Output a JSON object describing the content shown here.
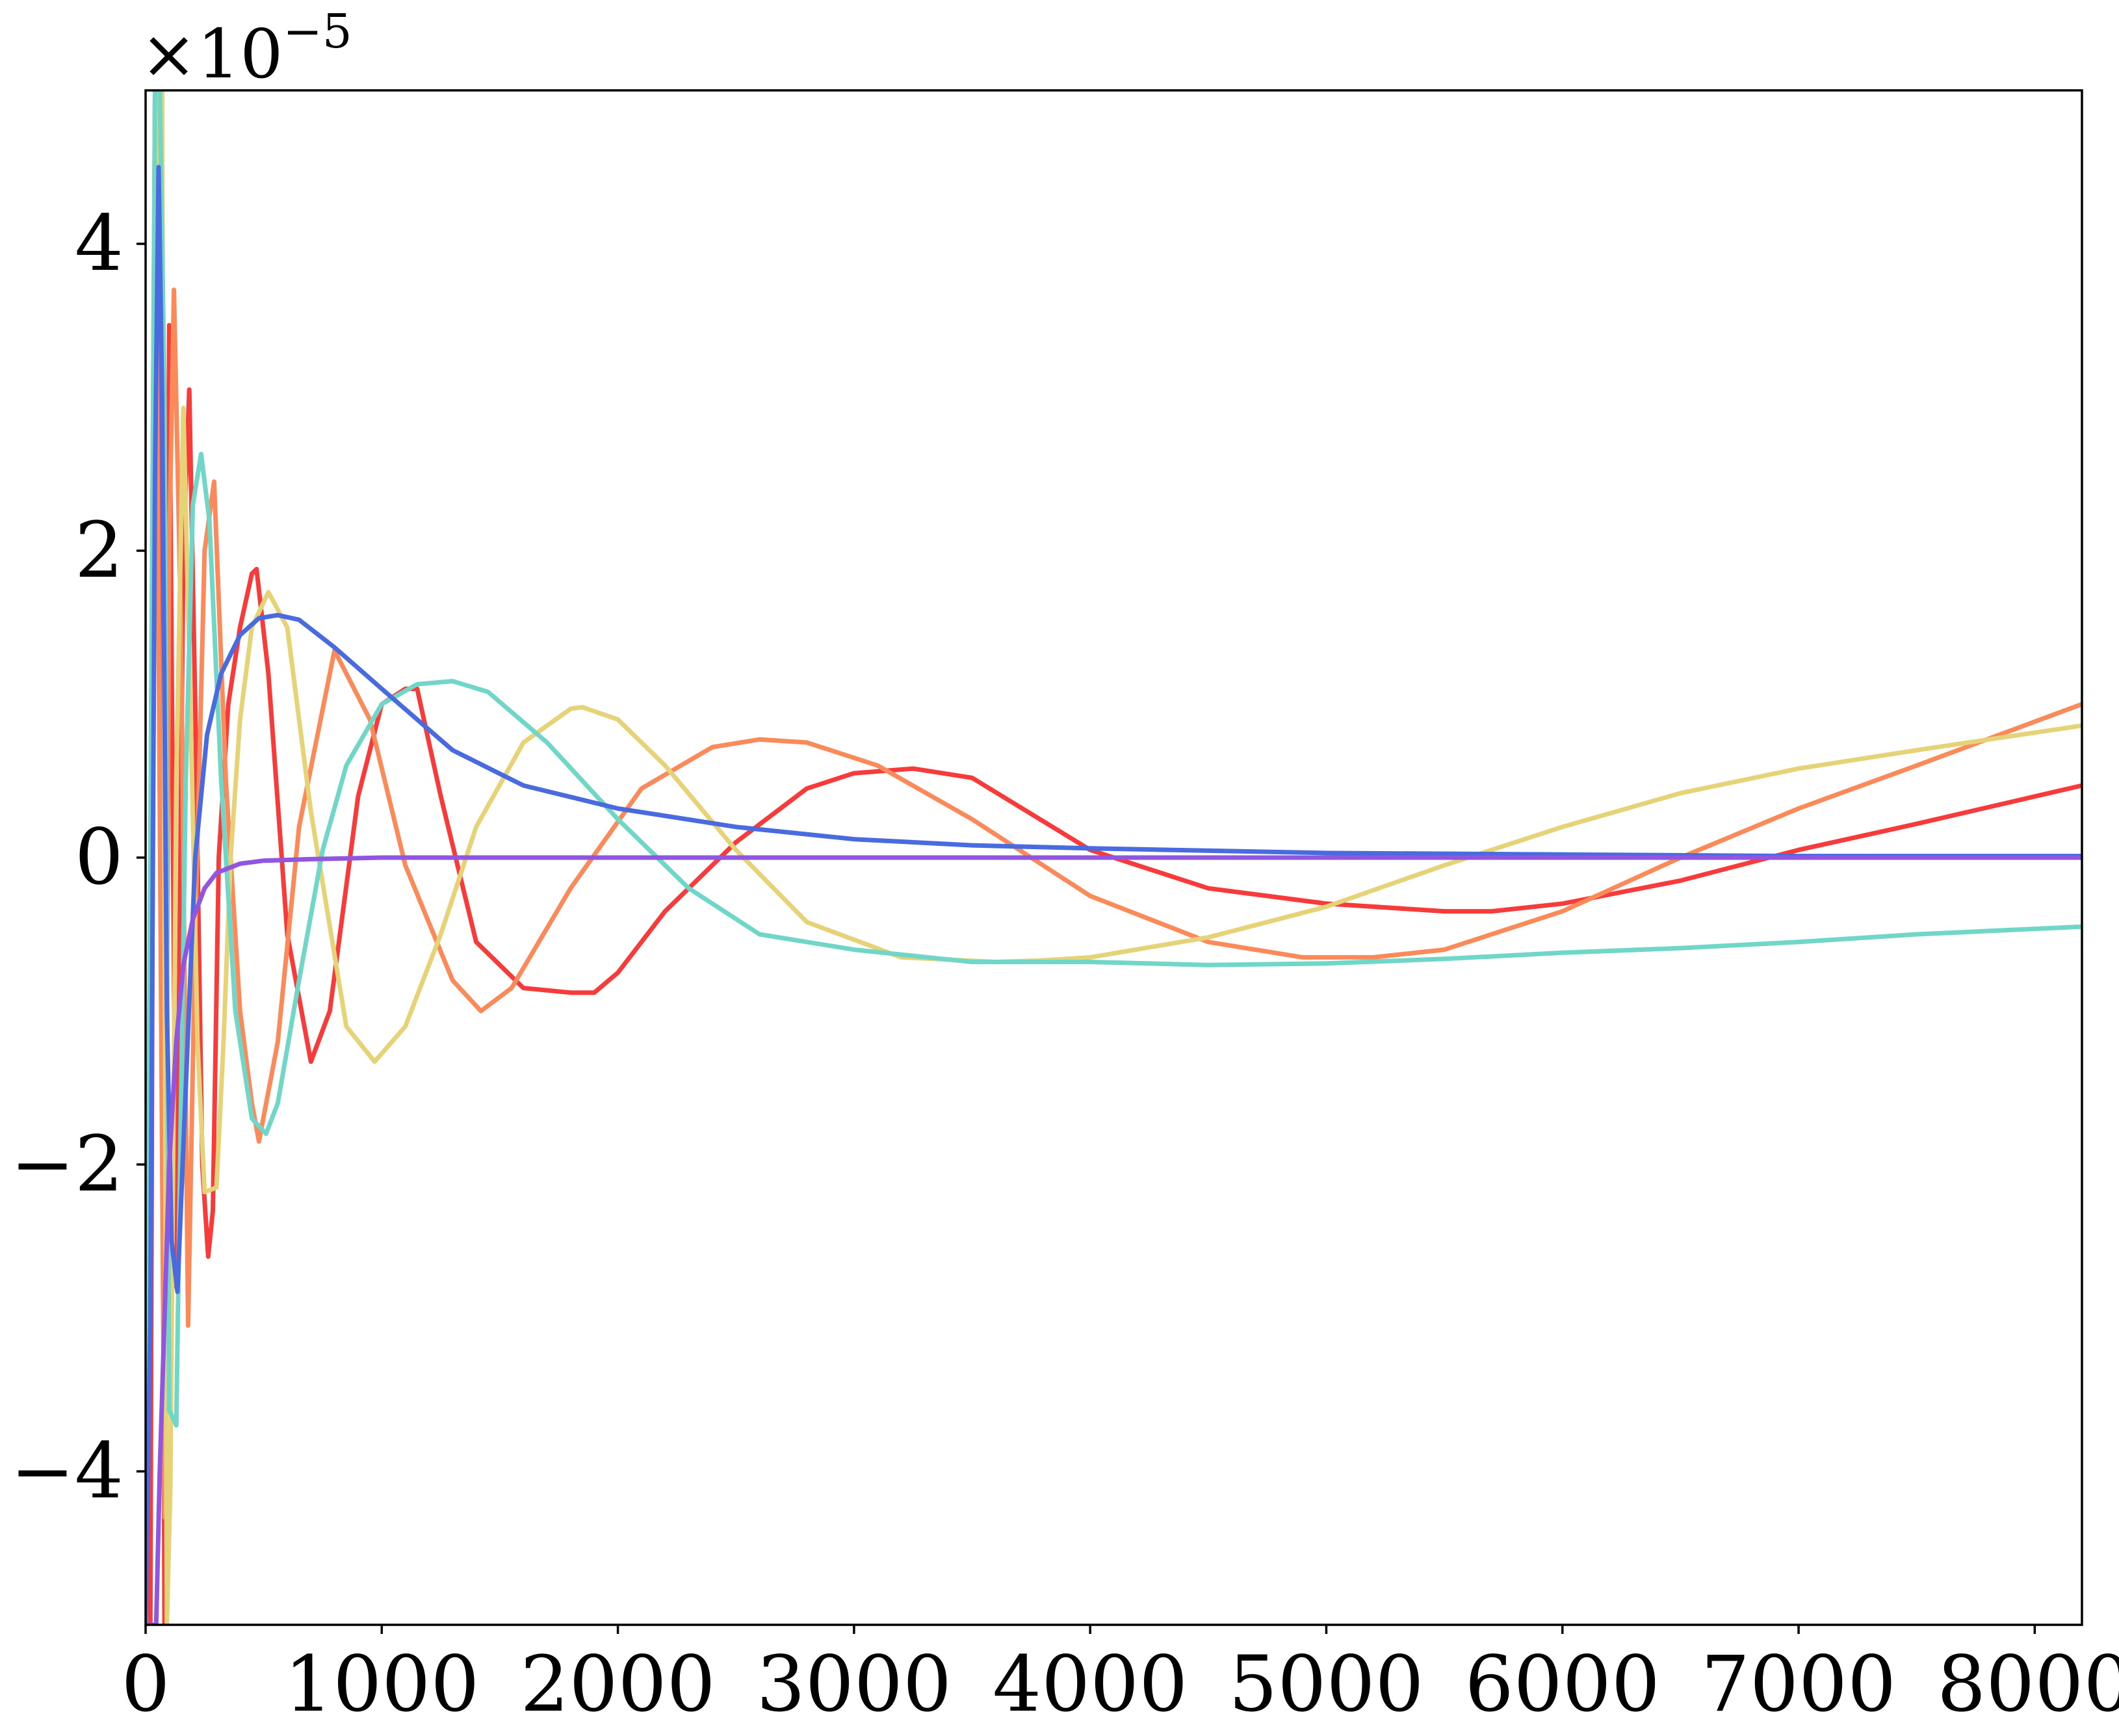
{
  "chart_data": {
    "type": "line",
    "title": "",
    "xlabel": "",
    "ylabel": "",
    "xlim": [
      0,
      8200
    ],
    "ylim": [
      -5,
      5
    ],
    "y_multiplier_label": {
      "base": "×10",
      "exponent": "−5"
    },
    "x_ticks": [
      0,
      1000,
      2000,
      3000,
      4000,
      5000,
      6000,
      7000,
      8000
    ],
    "x_tick_labels": [
      "0",
      "1000",
      "2000",
      "3000",
      "4000",
      "5000",
      "6000",
      "7000",
      "8000"
    ],
    "y_ticks": [
      -4,
      -2,
      0,
      2,
      4
    ],
    "y_tick_labels": [
      "−4",
      "−2",
      "0",
      "2",
      "4"
    ],
    "grid": false,
    "legend": "none",
    "series": [
      {
        "color": "#f73b3b",
        "x": [
          0,
          20,
          40,
          60,
          80,
          100,
          130,
          160,
          185,
          210,
          240,
          265,
          285,
          310,
          350,
          400,
          450,
          470,
          520,
          600,
          700,
          780,
          900,
          1000,
          1100,
          1150,
          1250,
          1400,
          1600,
          1800,
          1900,
          2000,
          2200,
          2500,
          2800,
          3000,
          3250,
          3500,
          4000,
          4500,
          5000,
          5500,
          5700,
          6000,
          6500,
          7000,
          7500,
          8200
        ],
        "y": [
          -5,
          -5,
          5,
          3.5,
          -5,
          3.47,
          -2.8,
          2.0,
          3.05,
          1.0,
          -2.0,
          -2.6,
          -2.3,
          0,
          1.0,
          1.5,
          1.85,
          1.88,
          1.2,
          -0.5,
          -1.33,
          -1.0,
          0.4,
          1.0,
          1.1,
          1.1,
          0.4,
          -0.55,
          -0.85,
          -0.88,
          -0.88,
          -0.75,
          -0.35,
          0.1,
          0.45,
          0.55,
          0.58,
          0.52,
          0.05,
          -0.2,
          -0.3,
          -0.35,
          -0.35,
          -0.3,
          -0.15,
          0.05,
          0.22,
          0.47
        ]
      },
      {
        "color": "#fa8a5a",
        "x": [
          0,
          40,
          80,
          100,
          120,
          150,
          180,
          210,
          250,
          290,
          340,
          400,
          450,
          480,
          560,
          650,
          800,
          950,
          1100,
          1300,
          1420,
          1550,
          1800,
          2100,
          2400,
          2600,
          2800,
          3100,
          3500,
          4000,
          4500,
          4900,
          5200,
          5500,
          6000,
          6500,
          7000,
          7500,
          8200
        ],
        "y": [
          -5,
          5,
          -4.3,
          2.0,
          3.7,
          1.5,
          -3.05,
          -0.5,
          2.0,
          2.45,
          0.5,
          -1.0,
          -1.6,
          -1.85,
          -1.2,
          0.2,
          1.35,
          0.9,
          -0.05,
          -0.8,
          -1.0,
          -0.85,
          -0.2,
          0.45,
          0.72,
          0.77,
          0.75,
          0.6,
          0.25,
          -0.25,
          -0.55,
          -0.65,
          -0.65,
          -0.6,
          -0.35,
          0,
          0.32,
          0.6,
          1.0
        ]
      },
      {
        "color": "#e6d378",
        "x": [
          0,
          50,
          70,
          90,
          105,
          130,
          160,
          190,
          220,
          250,
          300,
          330,
          360,
          400,
          450,
          520,
          600,
          700,
          850,
          970,
          1100,
          1250,
          1400,
          1600,
          1800,
          1850,
          2000,
          2200,
          2500,
          2800,
          3200,
          3600,
          3800,
          4000,
          4500,
          5000,
          5500,
          6000,
          6500,
          7000,
          7500,
          8200
        ],
        "y": [
          -5,
          5,
          5,
          -5,
          -4.1,
          0.5,
          2.93,
          1.0,
          -1.2,
          -2.18,
          -2.15,
          -1.2,
          0,
          0.9,
          1.5,
          1.73,
          1.5,
          0.3,
          -1.1,
          -1.33,
          -1.1,
          -0.5,
          0.2,
          0.75,
          0.97,
          0.98,
          0.9,
          0.6,
          0.05,
          -0.42,
          -0.65,
          -0.68,
          -0.67,
          -0.65,
          -0.52,
          -0.32,
          -0.05,
          0.2,
          0.42,
          0.58,
          0.7,
          0.86
        ]
      },
      {
        "color": "#6fd6c8",
        "x": [
          0,
          40,
          60,
          80,
          100,
          130,
          170,
          200,
          235,
          270,
          320,
          380,
          450,
          510,
          560,
          650,
          750,
          850,
          1000,
          1150,
          1300,
          1450,
          1700,
          2000,
          2300,
          2600,
          3000,
          3500,
          4000,
          4500,
          5000,
          5500,
          6000,
          6500,
          7000,
          7500,
          8200
        ],
        "y": [
          -5,
          5,
          5,
          3.0,
          -3.6,
          -3.7,
          0.5,
          2.3,
          2.63,
          2.2,
          0.5,
          -1.0,
          -1.7,
          -1.8,
          -1.6,
          -0.8,
          0.05,
          0.6,
          1.0,
          1.13,
          1.15,
          1.08,
          0.75,
          0.25,
          -0.2,
          -0.5,
          -0.6,
          -0.68,
          -0.68,
          -0.7,
          -0.69,
          -0.66,
          -0.62,
          -0.59,
          -0.55,
          -0.5,
          -0.45
        ]
      },
      {
        "color": "#4a6be0",
        "x": [
          0,
          20,
          40,
          55,
          70,
          90,
          110,
          135,
          170,
          210,
          260,
          320,
          400,
          480,
          560,
          650,
          800,
          1000,
          1300,
          1600,
          2000,
          2500,
          3000,
          3500,
          4000,
          5000,
          6000,
          7000,
          8200
        ],
        "y": [
          -5,
          -3.0,
          2.5,
          4.5,
          3.0,
          -1.0,
          -2.5,
          -2.83,
          -1.5,
          0,
          0.8,
          1.2,
          1.45,
          1.56,
          1.58,
          1.55,
          1.37,
          1.1,
          0.7,
          0.47,
          0.32,
          0.2,
          0.12,
          0.08,
          0.06,
          0.03,
          0.02,
          0.01,
          0.01
        ]
      },
      {
        "color": "#9056e0",
        "x": [
          0,
          15,
          30,
          45,
          60,
          80,
          100,
          130,
          160,
          200,
          250,
          300,
          400,
          500,
          700,
          1000,
          1500,
          2000,
          3000,
          4000,
          5000,
          6000,
          7000,
          8200
        ],
        "y": [
          -5,
          -5,
          -5,
          -5,
          -4.0,
          -3.0,
          -2.0,
          -1.2,
          -0.7,
          -0.4,
          -0.2,
          -0.1,
          -0.04,
          -0.02,
          -0.01,
          0,
          0,
          0,
          0,
          0,
          0,
          0,
          0,
          0
        ]
      }
    ]
  }
}
